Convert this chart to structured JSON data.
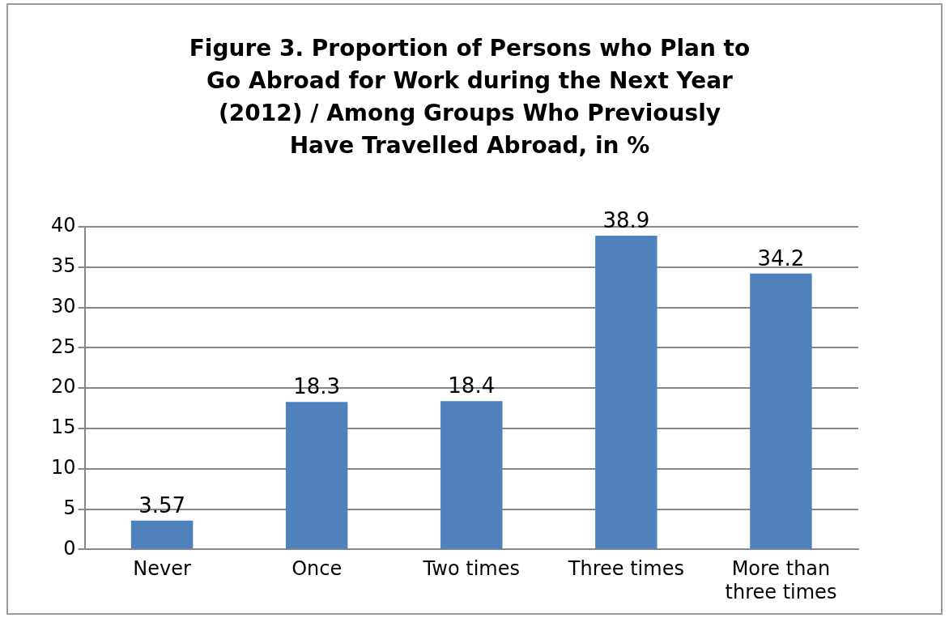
{
  "chart_data": {
    "type": "bar",
    "title": "Figure 3. Proportion of Persons who Plan to Go Abroad for Work during the Next Year (2012) / Among Groups Who Previously Have Travelled Abroad, in %",
    "categories": [
      "Never",
      "Once",
      "Two times",
      "Three times",
      "More than three times"
    ],
    "values": [
      3.57,
      18.3,
      18.4,
      38.9,
      34.2
    ],
    "color": "#4f81bd",
    "ylim": [
      0,
      40
    ],
    "yticks": [
      0,
      5,
      10,
      15,
      20,
      25,
      30,
      35,
      40
    ],
    "grid": "y",
    "data_labels": true
  }
}
